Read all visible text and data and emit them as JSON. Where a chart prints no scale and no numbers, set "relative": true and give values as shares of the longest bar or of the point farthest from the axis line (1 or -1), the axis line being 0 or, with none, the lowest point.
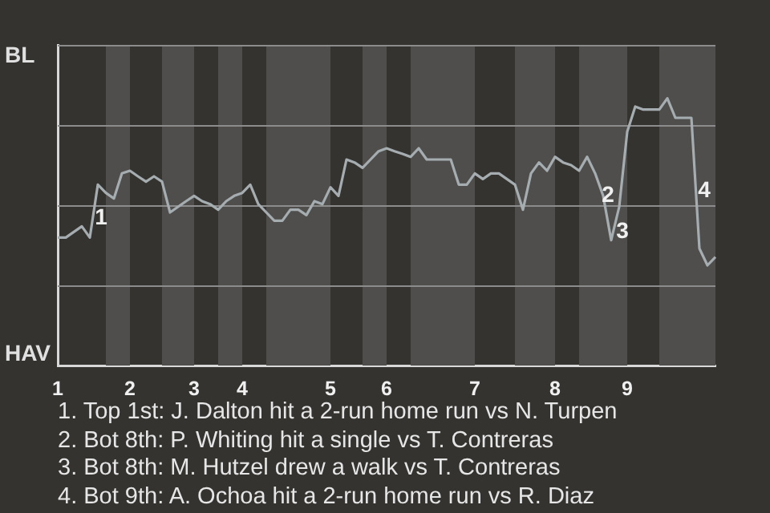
{
  "chart_data": {
    "type": "line",
    "relative": true,
    "categories": [
      "1",
      null,
      null,
      null,
      null,
      null,
      null,
      null,
      null,
      "2",
      null,
      null,
      null,
      null,
      null,
      null,
      null,
      "3",
      null,
      null,
      null,
      null,
      null,
      "4",
      null,
      null,
      null,
      null,
      null,
      null,
      null,
      null,
      null,
      null,
      "5",
      null,
      null,
      null,
      null,
      null,
      null,
      "6",
      null,
      null,
      null,
      null,
      null,
      null,
      null,
      null,
      null,
      null,
      "7",
      null,
      null,
      null,
      null,
      null,
      null,
      null,
      null,
      null,
      "8",
      null,
      null,
      null,
      null,
      null,
      null,
      null,
      null,
      "9",
      null,
      null,
      null,
      null,
      null,
      null,
      null,
      null,
      null,
      null,
      null
    ],
    "series": [
      {
        "color": "#a6adb0",
        "values": [
          0.479,
          0.479,
          0.5,
          0.521,
          0.479,
          0.677,
          0.646,
          0.625,
          0.719,
          0.729,
          0.708,
          0.688,
          0.708,
          0.688,
          0.573,
          0.594,
          0.615,
          0.635,
          0.615,
          0.604,
          0.583,
          0.615,
          0.635,
          0.646,
          0.677,
          0.604,
          0.573,
          0.542,
          0.542,
          0.583,
          0.583,
          0.563,
          0.615,
          0.604,
          0.667,
          0.635,
          0.771,
          0.76,
          0.74,
          0.771,
          0.802,
          0.813,
          0.802,
          0.792,
          0.781,
          0.813,
          0.771,
          0.771,
          0.771,
          0.771,
          0.677,
          0.677,
          0.719,
          0.698,
          0.719,
          0.719,
          0.698,
          0.677,
          0.583,
          0.719,
          0.76,
          0.729,
          0.781,
          0.76,
          0.75,
          0.729,
          0.781,
          0.719,
          0.635,
          0.469,
          0.594,
          0.875,
          0.969,
          0.958,
          0.958,
          0.958,
          1,
          0.927,
          0.927,
          0.927,
          0.438,
          0.375,
          0.406
        ]
      }
    ],
    "grid": "y",
    "legend": false,
    "marker": "none",
    "line_style": "solid",
    "annotations": [
      "BL",
      "HAV",
      "1",
      "2",
      "3",
      "4",
      "1. Top 1st: J. Dalton hit a 2-run home run vs N. Turpen",
      "2. Bot 8th: P. Whiting hit a single vs T. Contreras",
      "3. Bot 8th: M. Hutzel drew a walk vs T. Contreras",
      "4. Bot 9th: A. Ochoa hit a 2-run home run vs R. Diaz"
    ]
  }
}
